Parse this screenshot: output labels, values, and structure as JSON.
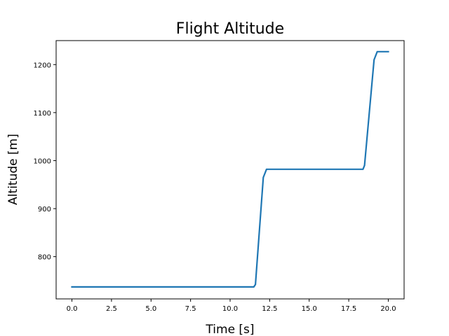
{
  "chart_data": {
    "type": "line",
    "title": "Flight Altitude",
    "xlabel": "Time [s]",
    "ylabel": "Altitude [m]",
    "xlim": [
      -1.0,
      21.0
    ],
    "ylim": [
      712,
      1250
    ],
    "xticks": [
      0.0,
      2.5,
      5.0,
      7.5,
      10.0,
      12.5,
      15.0,
      17.5,
      20.0
    ],
    "xtick_labels": [
      "0.0",
      "2.5",
      "5.0",
      "7.5",
      "10.0",
      "12.5",
      "15.0",
      "17.5",
      "20.0"
    ],
    "yticks": [
      800,
      900,
      1000,
      1100,
      1200
    ],
    "ytick_labels": [
      "800",
      "900",
      "1000",
      "1100",
      "1200"
    ],
    "grid": false,
    "series": [
      {
        "color": "#1f77b4",
        "x": [
          0.0,
          11.5,
          11.6,
          12.1,
          12.3,
          18.4,
          18.5,
          19.1,
          19.3,
          20.0
        ],
        "values": [
          737,
          737,
          742,
          965,
          982,
          982,
          990,
          1210,
          1227,
          1227
        ]
      }
    ]
  }
}
